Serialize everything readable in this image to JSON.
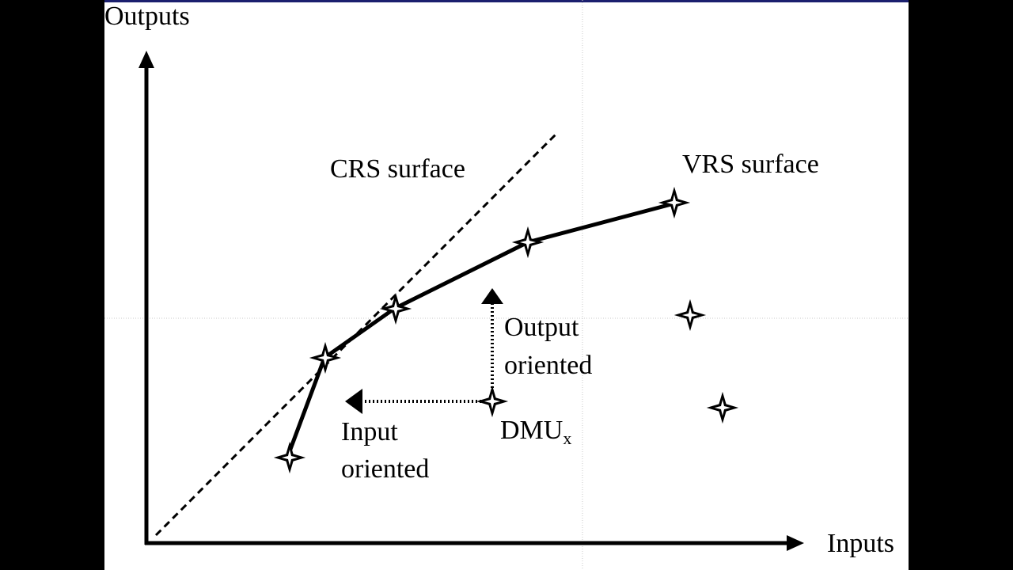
{
  "diagram": {
    "y_axis_label": "Outputs",
    "x_axis_label": "Inputs",
    "crs_label": "CRS surface",
    "vrs_label": "VRS surface",
    "output_oriented_line1": "Output",
    "output_oriented_line2": "oriented",
    "input_oriented_line1": "Input",
    "input_oriented_line2": "oriented",
    "dmu_label": "DMU",
    "dmu_subscript": "x"
  },
  "colors": {
    "background": "#000000",
    "slide": "#ffffff",
    "ink": "#000000",
    "top_border": "#1b1f6e"
  },
  "icons": {
    "point_marker": "four-point-star",
    "arrow": "filled-triangle"
  }
}
